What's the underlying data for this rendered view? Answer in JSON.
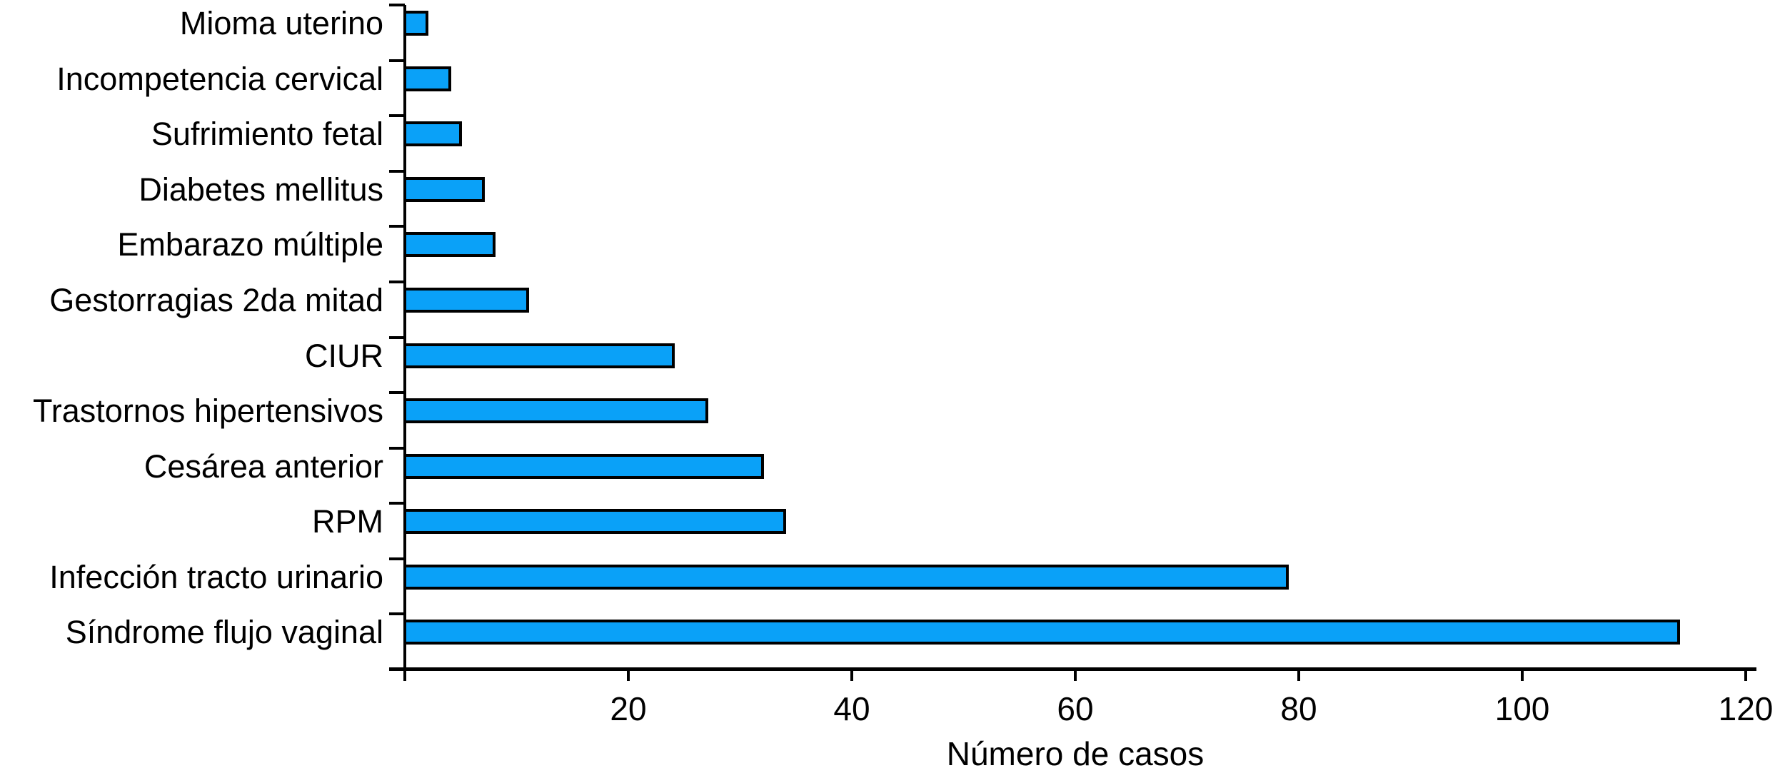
{
  "chart_data": {
    "type": "bar",
    "orientation": "horizontal",
    "title": "",
    "xlabel": "Número de casos",
    "ylabel": "",
    "categories": [
      "Mioma uterino",
      "Incompetencia cervical",
      "Sufrimiento fetal",
      "Diabetes mellitus",
      "Embarazo múltiple",
      "Gestorragias 2da mitad",
      "CIUR",
      "Trastornos hipertensivos",
      "Cesárea anterior",
      "RPM",
      "Infección tracto urinario",
      "Síndrome flujo vaginal"
    ],
    "values": [
      2,
      4,
      5,
      7,
      8,
      11,
      24,
      27,
      32,
      34,
      79,
      114
    ],
    "xlim": [
      0,
      120
    ],
    "xticks": [
      20,
      40,
      60,
      80,
      100,
      120
    ],
    "grid": false,
    "legend": false,
    "colors": {
      "bar_fill": "#0AA1F8",
      "bar_border": "#000000",
      "axis": "#000000",
      "text": "#000000",
      "background": "#FFFFFF"
    }
  }
}
